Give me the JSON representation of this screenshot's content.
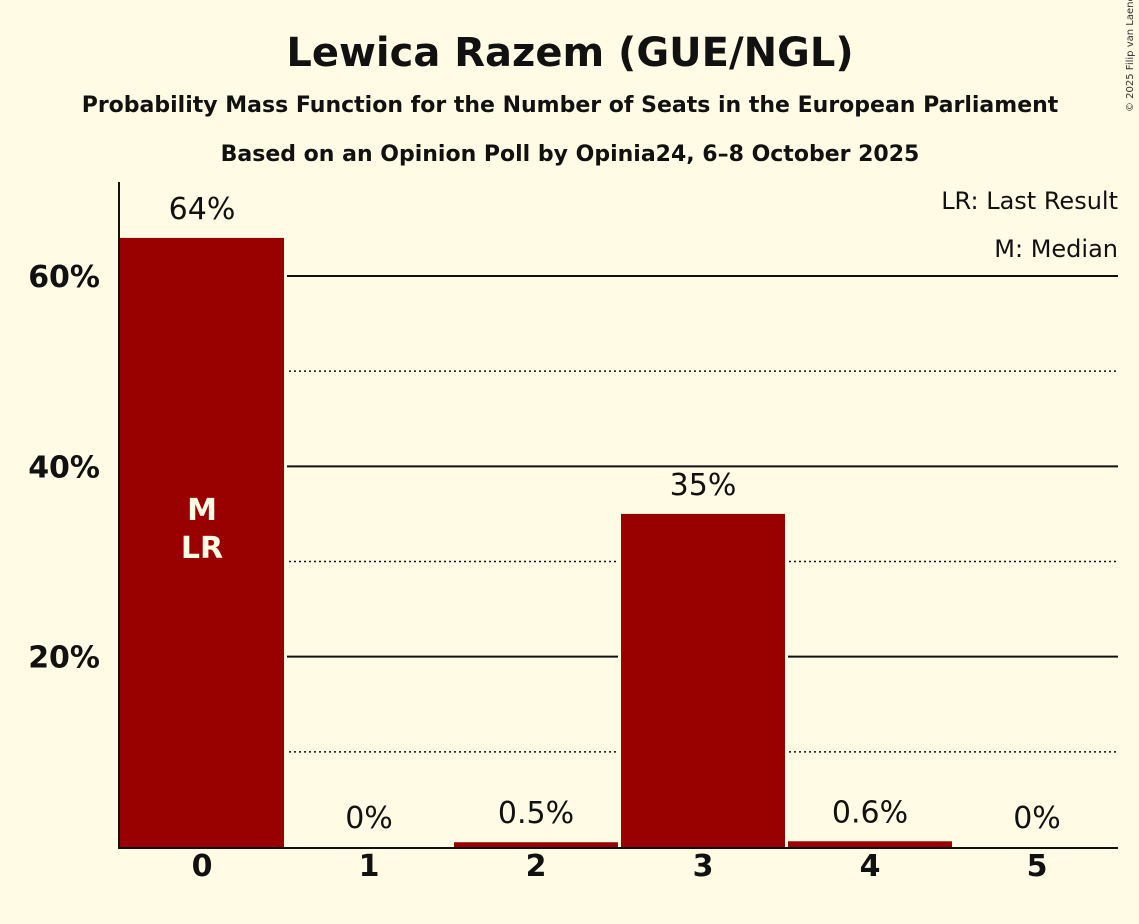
{
  "chart_data": {
    "type": "bar",
    "title": "Lewica Razem (GUE/NGL)",
    "subtitle": "Probability Mass Function for the Number of Seats in the European Parliament",
    "subtitle2": "Based on an Opinion Poll by Opinia24, 6–8 October 2025",
    "categories": [
      "0",
      "1",
      "2",
      "3",
      "4",
      "5"
    ],
    "values": [
      64,
      0,
      0.5,
      35,
      0.6,
      0
    ],
    "value_labels": [
      "64%",
      "0%",
      "0.5%",
      "35%",
      "0.6%",
      "0%"
    ],
    "ylim": [
      0,
      70
    ],
    "yticks": [
      20,
      40,
      60
    ],
    "ytick_labels": [
      "20%",
      "40%",
      "60%"
    ],
    "minor_gridlines": [
      10,
      30,
      50
    ],
    "grid": true,
    "bar_color": "#990000",
    "median_index": 0,
    "last_result_index": 0,
    "median_mark": "M",
    "last_result_mark": "LR",
    "legend": [
      "LR: Last Result",
      "M: Median"
    ],
    "legend_position": "top-right",
    "copyright": "© 2025 Filip van Laenen"
  }
}
